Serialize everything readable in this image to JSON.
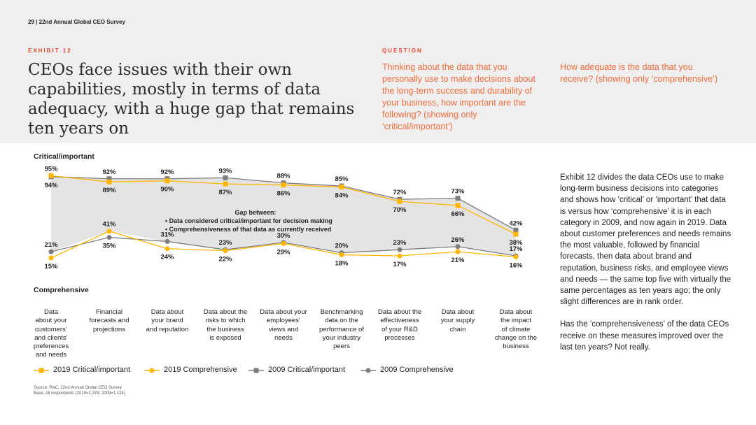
{
  "page": {
    "number": "29",
    "separator": "|",
    "report": "22nd Annual Global CEO Survey"
  },
  "exhibit": {
    "label": "EXHIBIT 12",
    "headline": "CEOs face issues with their own capabilities, mostly in terms of data adequacy, with a huge gap that remains ten years on"
  },
  "question": {
    "label": "QUESTION",
    "text": "Thinking about the data that you personally use to make decisions about the long-term success and durability of your business, how important are the following? (showing only ‘critical/important’)",
    "text2": "How adequate is the data that you receive? (showing only ‘comprehensive’)"
  },
  "body": {
    "paragraph1": "Exhibit 12 divides the data CEOs use to make long-term business decisions into categories and shows how ‘critical’ or ‘important’ that data is versus how ‘comprehensive’ it is in each category in 2009, and now again in 2019. Data about customer preferences and needs remains the most valuable, followed by financial forecasts, then data about brand and reputation, business risks, and employee views and needs — the same top five with virtually the same percentages as ten years ago; the only slight differences are in rank order.",
    "paragraph2": "Has the ‘comprehensiveness’ of the data CEOs receive on these measures improved over the last ten years? Not really."
  },
  "chart_data": {
    "type": "line",
    "top_label": "Critical/important",
    "bottom_label": "Comprehensive",
    "annotation": {
      "title": "Gap between:",
      "lines": [
        "• Data considered critical/important for decision making",
        "• Comprehensiveness of that data as currently received"
      ]
    },
    "categories": [
      "Data about your customers’ and clients’ preferences and needs",
      "Financial forecasts and projections",
      "Data about your brand and reputation",
      "Data about the risks to which the business is exposed",
      "Data about your employees’ views and needs",
      "Benchmarking data on the performance of your industry peers",
      "Data about the effectiveness of your R&D processes",
      "Data about your supply chain",
      "Data about the impact of climate change on the business"
    ],
    "category_lines": [
      [
        "Data",
        "about your",
        "customers’",
        "and clients’",
        "preferences",
        "and needs"
      ],
      [
        "Financial",
        "forecasts and",
        "projections"
      ],
      [
        "Data about",
        "your brand",
        "and reputation"
      ],
      [
        "Data about the",
        "risks to which",
        "the business",
        "is exposed"
      ],
      [
        "Data about your",
        "employees’",
        "views and",
        "needs"
      ],
      [
        "Benchmarking",
        "data on the",
        "performance of",
        "your industry",
        "peers"
      ],
      [
        "Data about the",
        "effectiveness",
        "of your R&D",
        "processes"
      ],
      [
        "Data about",
        "your supply",
        "chain"
      ],
      [
        "Data about",
        "the impact",
        "of climate",
        "change on the",
        "business"
      ]
    ],
    "series": [
      {
        "name": "2019 Critical/important",
        "values": [
          95,
          89,
          90,
          87,
          86,
          84,
          70,
          66,
          38
        ],
        "color": "#ffb600",
        "marker": "square"
      },
      {
        "name": "2019 Comprehensive",
        "values": [
          15,
          41,
          24,
          22,
          29,
          18,
          17,
          21,
          16
        ],
        "color": "#ffb600",
        "marker": "circle"
      },
      {
        "name": "2009 Critical/important",
        "values": [
          94,
          92,
          92,
          93,
          88,
          85,
          72,
          73,
          42
        ],
        "color": "#7d7d7d",
        "marker": "square"
      },
      {
        "name": "2009 Comprehensive",
        "values": [
          21,
          35,
          31,
          23,
          30,
          20,
          23,
          26,
          17
        ],
        "color": "#7d7d7d",
        "marker": "circle"
      }
    ],
    "labels": {
      "upper_top": [
        "95%",
        "92%",
        "92%",
        "93%",
        "88%",
        "85%",
        "72%",
        "73%",
        "42%"
      ],
      "upper_bottom": [
        "94%",
        "89%",
        "90%",
        "87%",
        "86%",
        "84%",
        "70%",
        "66%",
        "38%"
      ],
      "lower_top": [
        "21%",
        "41%",
        "31%",
        "23%",
        "30%",
        "20%",
        "23%",
        "26%",
        "17%"
      ],
      "lower_bottom": [
        "15%",
        "35%",
        "24%",
        "22%",
        "29%",
        "18%",
        "17%",
        "21%",
        "16%"
      ]
    },
    "ylim": [
      0,
      100
    ],
    "grid": false,
    "legend_position": "bottom",
    "fill_between": "#e4e4e4"
  },
  "source": {
    "line1": "Source: PwC, 22nd Annual Global CEO Survey",
    "line2": "Base: All respondents (2019=1,378; 2009=1,124)"
  }
}
